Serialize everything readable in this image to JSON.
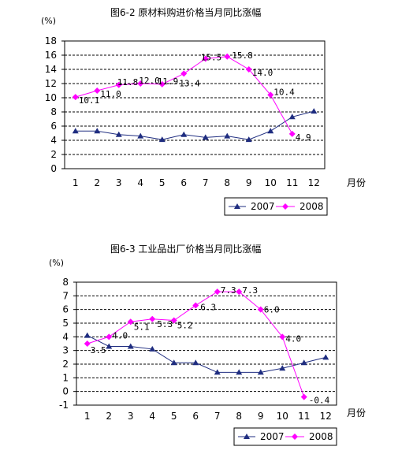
{
  "chart_data": [
    {
      "type": "line",
      "title": "图6-2 原材料购进价格当月同比涨幅",
      "ylabel": "(%)",
      "xlabel": "月份",
      "categories": [
        "1",
        "2",
        "3",
        "4",
        "5",
        "6",
        "7",
        "8",
        "9",
        "10",
        "11",
        "12"
      ],
      "ylim": [
        0,
        18
      ],
      "yticks": [
        0,
        2,
        4,
        6,
        8,
        10,
        12,
        14,
        16,
        18
      ],
      "grid": "horizontal dashed",
      "legend_position": "bottom-right",
      "series": [
        {
          "name": "2007",
          "color": "#1f2d80",
          "marker": "triangle",
          "values": [
            5.3,
            5.3,
            4.8,
            4.6,
            4.1,
            4.8,
            4.4,
            4.6,
            4.1,
            5.3,
            7.3,
            8.1
          ]
        },
        {
          "name": "2008",
          "color": "#ff00ff",
          "marker": "diamond",
          "values": [
            10.1,
            11.0,
            11.8,
            12.0,
            11.9,
            13.4,
            15.5,
            15.8,
            14.0,
            10.4,
            4.9,
            null
          ],
          "data_labels": [
            "10.1",
            "11.0",
            "11.8",
            "12.0",
            "11.9",
            "13.4",
            "15.5",
            "15.8",
            "14.0",
            "10.4",
            "4.9",
            ""
          ]
        }
      ]
    },
    {
      "type": "line",
      "title": "图6-3  工业品出厂价格当月同比涨幅",
      "ylabel": "(%)",
      "xlabel": "月份",
      "categories": [
        "1",
        "2",
        "3",
        "4",
        "5",
        "6",
        "7",
        "8",
        "9",
        "10",
        "11",
        "12"
      ],
      "ylim": [
        -1,
        8
      ],
      "yticks": [
        -1,
        0,
        1,
        2,
        3,
        4,
        5,
        6,
        7,
        8
      ],
      "grid": "horizontal dashed",
      "legend_position": "bottom-right",
      "series": [
        {
          "name": "2007",
          "color": "#1f2d80",
          "marker": "triangle",
          "values": [
            4.1,
            3.3,
            3.3,
            3.1,
            2.1,
            2.1,
            1.4,
            1.4,
            1.4,
            1.7,
            2.1,
            2.5
          ]
        },
        {
          "name": "2008",
          "color": "#ff00ff",
          "marker": "diamond",
          "values": [
            3.5,
            4.0,
            5.1,
            5.3,
            5.2,
            6.3,
            7.3,
            7.3,
            6.0,
            4.0,
            -0.4,
            null
          ],
          "data_labels": [
            "3.5",
            "4.0",
            "5.1",
            "5.3",
            "5.2",
            "6.3",
            "7.3",
            "7.3",
            "6.0",
            "4.0",
            "-0.4",
            ""
          ]
        }
      ]
    }
  ]
}
